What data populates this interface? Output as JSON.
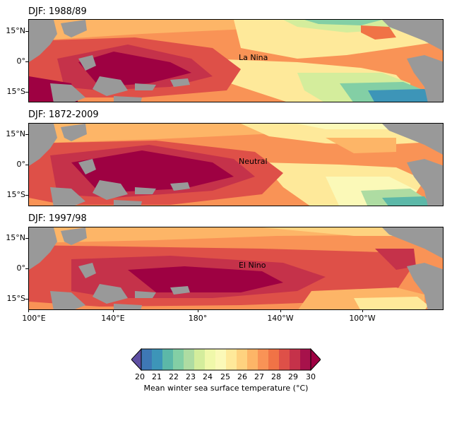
{
  "panels": [
    {
      "title": "DJF: 1988/89",
      "phase": "La Nina"
    },
    {
      "title": "DJF: 1872-2009",
      "phase": "Neutral"
    },
    {
      "title": "DJF: 1997/98",
      "phase": "El Nino"
    }
  ],
  "y_ticks": [
    "15°N",
    "0°",
    "15°S"
  ],
  "x_ticks": [
    "100°E",
    "140°E",
    "180°",
    "140°W",
    "100°W"
  ],
  "colorbar": {
    "levels": [
      20,
      21,
      22,
      23,
      24,
      25,
      26,
      27,
      28,
      29,
      30
    ],
    "tick_labels": [
      "20",
      "21",
      "22",
      "23",
      "24",
      "25",
      "26",
      "27",
      "28",
      "29",
      "30"
    ],
    "label": "Mean winter sea surface temperature (°C)",
    "colors": [
      "#5e4fa2",
      "#3e78b5",
      "#3d95b8",
      "#5cb8a8",
      "#83cfa5",
      "#aedca2",
      "#d4ed9c",
      "#f0f8aa",
      "#fbf9b8",
      "#fee99a",
      "#fed27f",
      "#fdb567",
      "#f99356",
      "#f07346",
      "#de5048",
      "#c5324a",
      "#a7124b",
      "#9e0142"
    ]
  },
  "colors": {
    "land": "#999999",
    "frame": "#000000"
  }
}
